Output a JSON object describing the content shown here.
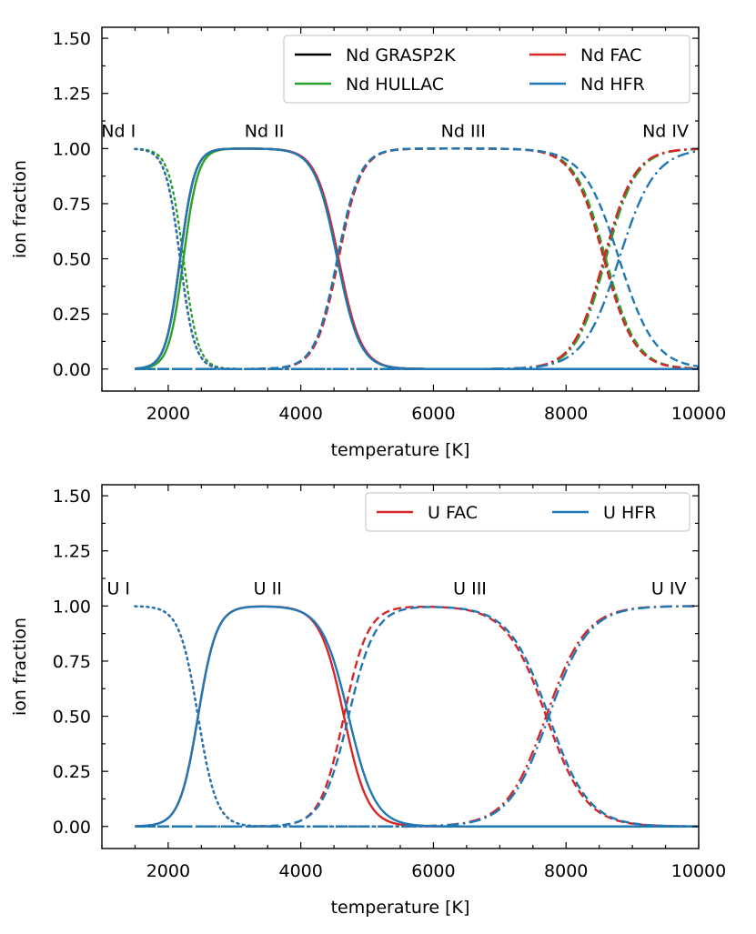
{
  "chart_data": [
    {
      "type": "line",
      "xlabel": "temperature [K]",
      "ylabel": "ion fraction",
      "xlim": [
        1000,
        10000
      ],
      "ylim": [
        -0.1,
        1.55
      ],
      "xticks": [
        2000,
        4000,
        6000,
        8000,
        10000
      ],
      "yticks": [
        "0.00",
        "0.25",
        "0.50",
        "0.75",
        "1.00",
        "1.25",
        "1.50"
      ],
      "grid": false,
      "legend_position": "top-right",
      "ion_labels": [
        {
          "text": "Nd I",
          "x": 1250
        },
        {
          "text": "Nd II",
          "x": 3450
        },
        {
          "text": "Nd III",
          "x": 6450
        },
        {
          "text": "Nd IV",
          "x": 9500
        }
      ],
      "series": [
        {
          "name": "Nd GRASP2K",
          "color": "#000000",
          "transitions": [
            [
              2180,
              110
            ],
            [
              4560,
              170
            ],
            [
              8580,
              230
            ]
          ]
        },
        {
          "name": "Nd HULLAC",
          "color": "#2ca02c",
          "transitions": [
            [
              2230,
              110
            ],
            [
              4560,
              170
            ],
            [
              8600,
              230
            ]
          ]
        },
        {
          "name": "Nd FAC",
          "color": "#d62728",
          "transitions": [
            [
              2180,
              110
            ],
            [
              4570,
              170
            ],
            [
              8570,
              230
            ]
          ]
        },
        {
          "name": "Nd HFR",
          "color": "#1f77b4",
          "transitions": [
            [
              2180,
              110
            ],
            [
              4550,
              170
            ],
            [
              8800,
              270
            ]
          ]
        }
      ]
    },
    {
      "type": "line",
      "xlabel": "temperature [K]",
      "ylabel": "ion fraction",
      "xlim": [
        1000,
        10000
      ],
      "ylim": [
        -0.1,
        1.55
      ],
      "xticks": [
        2000,
        4000,
        6000,
        8000,
        10000
      ],
      "yticks": [
        "0.00",
        "0.25",
        "0.50",
        "0.75",
        "1.00",
        "1.25",
        "1.50"
      ],
      "grid": false,
      "legend_position": "top-right",
      "ion_labels": [
        {
          "text": "U I",
          "x": 1250
        },
        {
          "text": "U II",
          "x": 3500
        },
        {
          "text": "U III",
          "x": 6550
        },
        {
          "text": "U IV",
          "x": 9550
        }
      ],
      "series": [
        {
          "name": "U FAC",
          "color": "#d62728",
          "transitions": [
            [
              2450,
              140
            ],
            [
              4650,
              180
            ],
            [
              7700,
              300
            ]
          ]
        },
        {
          "name": "U HFR",
          "color": "#1f77b4",
          "transitions": [
            [
              2450,
              140
            ],
            [
              4720,
              200
            ],
            [
              7740,
              300
            ]
          ]
        }
      ]
    }
  ]
}
